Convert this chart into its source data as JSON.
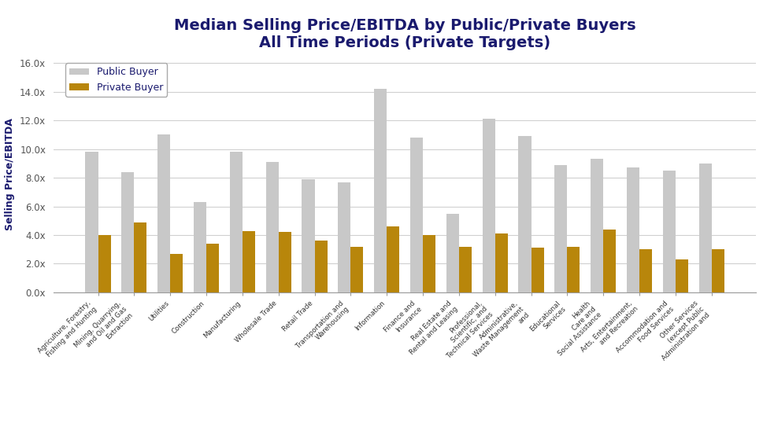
{
  "title": "Median Selling Price/EBITDA by Public/Private Buyers",
  "subtitle": "All Time Periods (Private Targets)",
  "ylabel": "Selling Price/EBITDA",
  "title_color": "#1a1a6e",
  "subtitle_color": "#1a1a6e",
  "ylabel_color": "#1a1a6e",
  "background_color": "#ffffff",
  "ylim": [
    0,
    16.5
  ],
  "yticks": [
    0.0,
    2.0,
    4.0,
    6.0,
    8.0,
    10.0,
    12.0,
    14.0,
    16.0
  ],
  "public_color": "#c8c8c8",
  "private_color": "#b8860b",
  "categories": [
    "Agriculture, Forestry,\nFishing and Hunting",
    "Mining, Quarrying,\nand Oil and Gas\nExtraction",
    "Utilities",
    "Construction",
    "Manufacturing",
    "Wholesale Trade",
    "Retail Trade",
    "Transportation and\nWarehousing",
    "Information",
    "Finance and\nInsurance",
    "Real Estate and\nRental and Leasing",
    "Professional,\nScientific, and\nTechnical Services",
    "Administrative,\nWaste Management\nand",
    "Educational\nServices",
    "Health\nCare and\nSocial Assistance",
    "Arts, Entertainment,\nand Recreation",
    "Accommodation and\nFood Services",
    "Other Services\n(except Public\nAdministration and"
  ],
  "public_values": [
    9.8,
    8.4,
    11.0,
    6.3,
    9.8,
    9.1,
    7.9,
    7.7,
    14.2,
    10.8,
    5.5,
    12.1,
    10.9,
    8.9,
    9.3,
    8.7,
    8.5,
    9.0
  ],
  "private_values": [
    4.0,
    4.9,
    2.7,
    3.4,
    4.3,
    4.2,
    3.6,
    3.2,
    4.6,
    4.0,
    3.2,
    4.1,
    3.1,
    3.2,
    4.4,
    3.0,
    2.3,
    3.0
  ],
  "legend_labels": [
    "Public Buyer",
    "Private Buyer"
  ],
  "grid_color": "#d0d0d0"
}
